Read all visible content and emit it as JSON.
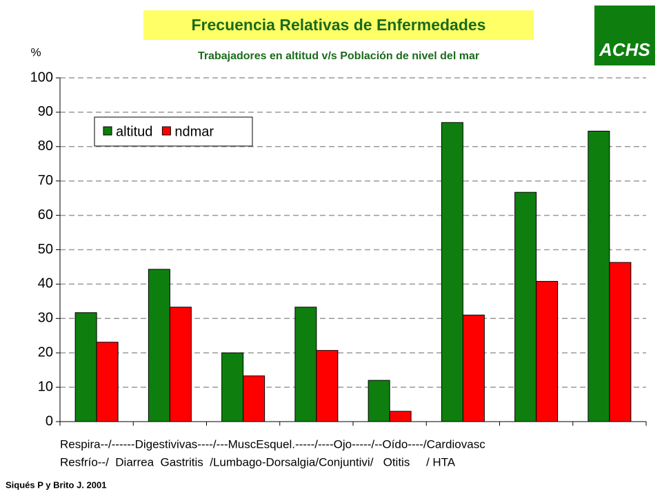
{
  "chart_data": {
    "type": "bar",
    "title": "Frecuencia Relativas de Enfermedades",
    "subtitle": "Trabajadores en altitud v/s Población de nivel del mar",
    "y_label": "%",
    "logo": "ACHS",
    "source": "Siqués P y Brito J. 2001",
    "x_label_lines": [
      "Respira--/------Digestivivas----/---MuscEsquel.-----/----Ojo-----/--Oído----/Cardiovasc",
      "Resfrío--/  Diarrea  Gastritis  /Lumbago-Dorsalgia/Conjuntivi/   Otitis     / HTA"
    ],
    "categories": [
      null,
      null,
      null,
      null,
      null,
      null,
      null,
      null
    ],
    "series": [
      {
        "name": "altitud",
        "color": "#0e7f0e",
        "values": [
          31.7,
          44.3,
          20,
          33.3,
          12,
          87,
          66.7,
          84.5
        ]
      },
      {
        "name": "ndmar",
        "color": "#ff0000",
        "values": [
          23.1,
          33.3,
          13.3,
          20.7,
          3,
          31,
          40.8,
          46.3
        ]
      }
    ],
    "ylim": [
      0,
      100
    ],
    "yticks": [
      0,
      10,
      20,
      30,
      40,
      50,
      60,
      70,
      80,
      90,
      100
    ],
    "grid": true,
    "legend": "upper left"
  }
}
